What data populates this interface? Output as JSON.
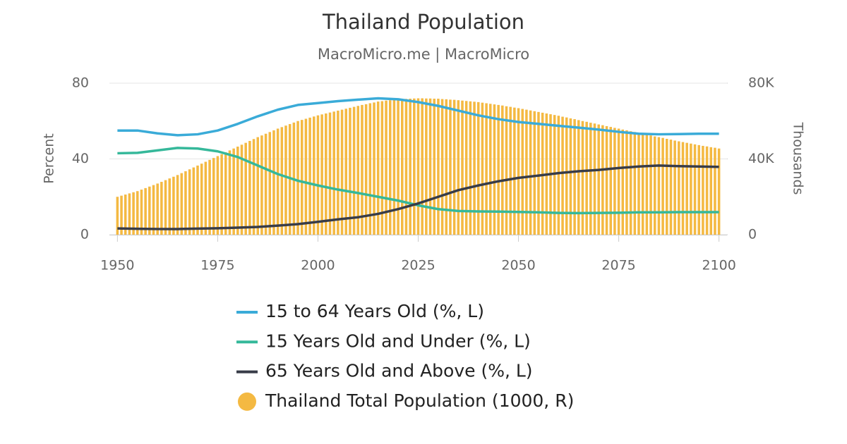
{
  "chart_data": {
    "type": "combo",
    "title": "Thailand Population",
    "subtitle": "MacroMicro.me | MacroMicro",
    "ylabel": "Percent",
    "y2label": "Thousands",
    "xlim": [
      1948,
      2102
    ],
    "xticks": [
      1950,
      1975,
      2000,
      2025,
      2050,
      2075,
      2100
    ],
    "ylim": [
      0,
      80
    ],
    "yticks": [
      0,
      40,
      80
    ],
    "y2lim": [
      0,
      80000
    ],
    "y2ticks": [
      0,
      {
        "value": 40000,
        "label": "40K"
      },
      {
        "value": 80000,
        "label": "80K"
      }
    ],
    "grid": true,
    "legend": "bottom",
    "series": [
      {
        "name": "15 to 64 Years Old (%, L)",
        "type": "line",
        "color": "#3aabd8",
        "x": [
          1950,
          1955,
          1960,
          1965,
          1970,
          1975,
          1980,
          1985,
          1990,
          1995,
          2000,
          2005,
          2010,
          2015,
          2020,
          2025,
          2030,
          2035,
          2040,
          2045,
          2050,
          2055,
          2060,
          2065,
          2070,
          2075,
          2080,
          2085,
          2090,
          2095,
          2100
        ],
        "values": [
          55,
          55,
          53.5,
          52.5,
          53,
          55,
          58.5,
          62.5,
          66,
          68.5,
          69.5,
          70.5,
          71.3,
          72,
          71.5,
          70,
          68,
          65.5,
          63,
          61,
          59.5,
          58.5,
          57.5,
          56.5,
          55.5,
          54.3,
          53.3,
          53,
          53.1,
          53.3,
          53.3
        ]
      },
      {
        "name": "15 Years Old and Under (%, L)",
        "type": "line",
        "color": "#35b89a",
        "x": [
          1950,
          1955,
          1960,
          1965,
          1970,
          1975,
          1980,
          1985,
          1990,
          1995,
          2000,
          2005,
          2010,
          2015,
          2020,
          2025,
          2030,
          2035,
          2040,
          2045,
          2050,
          2055,
          2060,
          2065,
          2070,
          2075,
          2080,
          2085,
          2090,
          2095,
          2100
        ],
        "values": [
          43,
          43.2,
          44.5,
          45.8,
          45.5,
          44,
          41,
          36.5,
          32,
          28.5,
          26,
          23.8,
          22,
          20,
          18,
          15.5,
          13.5,
          12.5,
          12.3,
          12.2,
          12,
          11.8,
          11.5,
          11.4,
          11.5,
          11.6,
          11.8,
          11.8,
          11.9,
          11.9,
          11.9
        ]
      },
      {
        "name": "65 Years Old and Above (%, L)",
        "type": "line",
        "color": "#383c48",
        "x": [
          1950,
          1955,
          1960,
          1965,
          1970,
          1975,
          1980,
          1985,
          1990,
          1995,
          2000,
          2005,
          2010,
          2015,
          2020,
          2025,
          2030,
          2035,
          2040,
          2045,
          2050,
          2055,
          2060,
          2065,
          2070,
          2075,
          2080,
          2085,
          2090,
          2095,
          2100
        ],
        "values": [
          3.3,
          3.1,
          3,
          3,
          3.2,
          3.4,
          3.7,
          4.1,
          4.8,
          5.6,
          6.8,
          8.1,
          9.2,
          11,
          13.5,
          16.5,
          20,
          23.5,
          26,
          28.2,
          30,
          31.2,
          32.5,
          33.5,
          34.2,
          35.2,
          36,
          36.5,
          36.2,
          36,
          35.8
        ]
      },
      {
        "name": "Thailand Total Population (1000, R)",
        "type": "bar",
        "axis": "y2",
        "color": "#f4b942",
        "x": [
          1950,
          1951,
          1952,
          1953,
          1954,
          1955,
          1956,
          1957,
          1958,
          1959,
          1960,
          1961,
          1962,
          1963,
          1964,
          1965,
          1966,
          1967,
          1968,
          1969,
          1970,
          1971,
          1972,
          1973,
          1974,
          1975,
          1976,
          1977,
          1978,
          1979,
          1980,
          1981,
          1982,
          1983,
          1984,
          1985,
          1986,
          1987,
          1988,
          1989,
          1990,
          1991,
          1992,
          1993,
          1994,
          1995,
          1996,
          1997,
          1998,
          1999,
          2000,
          2001,
          2002,
          2003,
          2004,
          2005,
          2006,
          2007,
          2008,
          2009,
          2010,
          2011,
          2012,
          2013,
          2014,
          2015,
          2016,
          2017,
          2018,
          2019,
          2020,
          2021,
          2022,
          2023,
          2024,
          2025,
          2026,
          2027,
          2028,
          2029,
          2030,
          2031,
          2032,
          2033,
          2034,
          2035,
          2036,
          2037,
          2038,
          2039,
          2040,
          2041,
          2042,
          2043,
          2044,
          2045,
          2046,
          2047,
          2048,
          2049,
          2050,
          2051,
          2052,
          2053,
          2054,
          2055,
          2056,
          2057,
          2058,
          2059,
          2060,
          2061,
          2062,
          2063,
          2064,
          2065,
          2066,
          2067,
          2068,
          2069,
          2070,
          2071,
          2072,
          2073,
          2074,
          2075,
          2076,
          2077,
          2078,
          2079,
          2080,
          2081,
          2082,
          2083,
          2084,
          2085,
          2086,
          2087,
          2088,
          2089,
          2090,
          2091,
          2092,
          2093,
          2094,
          2095,
          2096,
          2097,
          2098,
          2099,
          2100
        ],
        "values": [
          20000,
          20600,
          21200,
          21800,
          22400,
          23000,
          23800,
          24600,
          25400,
          26200,
          27000,
          27900,
          28800,
          29700,
          30600,
          31500,
          32500,
          33500,
          34500,
          35500,
          36500,
          37500,
          38500,
          39500,
          40500,
          41500,
          42500,
          43500,
          44500,
          45500,
          46500,
          47500,
          48500,
          49500,
          50500,
          51500,
          52400,
          53300,
          54200,
          55100,
          56000,
          56800,
          57600,
          58400,
          59200,
          60000,
          60600,
          61200,
          61800,
          62400,
          63000,
          63500,
          64000,
          64500,
          65000,
          65500,
          66000,
          66500,
          67000,
          67500,
          68000,
          68500,
          68900,
          69400,
          69800,
          70300,
          70500,
          70800,
          71000,
          71300,
          71500,
          71600,
          71700,
          71800,
          71900,
          72000,
          72000,
          71900,
          71900,
          71800,
          71800,
          71600,
          71500,
          71300,
          71200,
          71000,
          70800,
          70600,
          70400,
          70200,
          70000,
          69700,
          69400,
          69100,
          68800,
          68500,
          68200,
          67800,
          67500,
          67100,
          66800,
          66400,
          66000,
          65600,
          65200,
          64800,
          64400,
          64000,
          63600,
          63200,
          62800,
          62300,
          61900,
          61400,
          61000,
          60500,
          60000,
          59600,
          59100,
          58700,
          58200,
          57800,
          57300,
          56900,
          56400,
          56000,
          55500,
          55100,
          54600,
          54200,
          53700,
          53300,
          52800,
          52400,
          51900,
          51500,
          51100,
          50600,
          50200,
          49700,
          49300,
          48900,
          48500,
          48100,
          47700,
          47300,
          46900,
          46600,
          46200,
          45900,
          45500
        ]
      }
    ]
  }
}
